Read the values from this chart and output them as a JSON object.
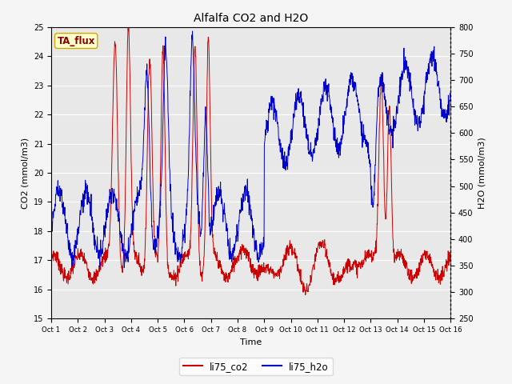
{
  "title": "Alfalfa CO2 and H2O",
  "xlabel": "Time",
  "ylabel_left": "CO2 (mmol/m3)",
  "ylabel_right": "H2O (mmol/m3)",
  "annotation_text": "TA_flux",
  "annotation_bg": "#ffffcc",
  "annotation_border": "#ccaa00",
  "co2_color": "#cc0000",
  "h2o_color": "#0000cc",
  "plot_bg_color": "#e8e8e8",
  "fig_bg_color": "#f5f5f5",
  "ylim_co2": [
    15.0,
    25.0
  ],
  "ylim_h2o": [
    250,
    800
  ],
  "yticks_co2": [
    15.0,
    16.0,
    17.0,
    18.0,
    19.0,
    20.0,
    21.0,
    22.0,
    23.0,
    24.0,
    25.0
  ],
  "yticks_h2o": [
    250,
    300,
    350,
    400,
    450,
    500,
    550,
    600,
    650,
    700,
    750,
    800
  ],
  "xtick_labels": [
    "Oct 1",
    "Oct 2",
    "Oct 3",
    "Oct 4",
    "Oct 5",
    "Oct 6",
    "Oct 7",
    "Oct 8",
    "Oct 9",
    "Oct 10",
    "Oct 11",
    "Oct 12",
    "Oct 13",
    "Oct 14",
    "Oct 15",
    "Oct 16"
  ],
  "legend_labels": [
    "li75_co2",
    "li75_h2o"
  ],
  "figsize": [
    6.4,
    4.8
  ],
  "dpi": 100
}
